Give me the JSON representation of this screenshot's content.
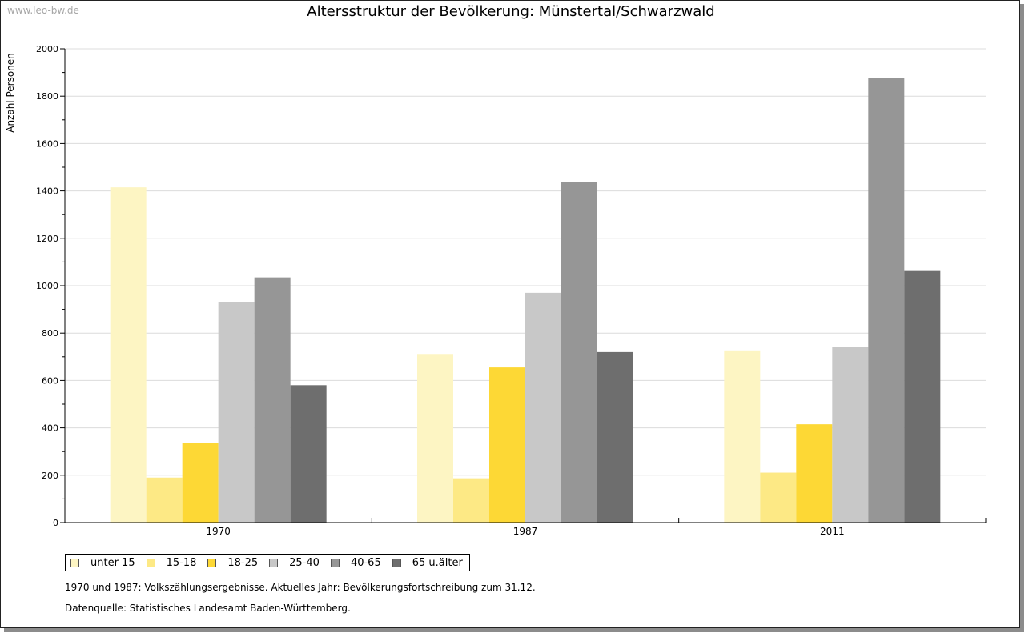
{
  "watermark": "www.leo-bw.de",
  "notes": {
    "line1": "1970 und 1987: Volkszählungsergebnisse. Aktuelles Jahr: Bevölkerungsfortschreibung zum 31.12.",
    "line2": "Datenquelle: Statistisches Landesamt Baden-Württemberg."
  },
  "chart_data": {
    "type": "bar",
    "title": "Altersstruktur der Bevölkerung: Münstertal/Schwarzwald",
    "xlabel": "",
    "ylabel": "Anzahl Personen",
    "ylim": [
      0,
      2000
    ],
    "yticks": [
      "0",
      "200",
      "400",
      "600",
      "800",
      "1000",
      "1200",
      "1400",
      "1600",
      "1800",
      "2000"
    ],
    "grid": true,
    "legend_position": "bottom-left",
    "categories": [
      "1970",
      "1987",
      "2011"
    ],
    "series": [
      {
        "name": "unter 15",
        "color": "#fdf5c3",
        "values": [
          1415,
          712,
          727
        ]
      },
      {
        "name": "15-18",
        "color": "#fde985",
        "values": [
          190,
          187,
          211
        ]
      },
      {
        "name": "18-25",
        "color": "#fdd835",
        "values": [
          335,
          655,
          415
        ]
      },
      {
        "name": "25-40",
        "color": "#c8c8c8",
        "values": [
          930,
          970,
          740
        ]
      },
      {
        "name": "40-65",
        "color": "#969696",
        "values": [
          1035,
          1437,
          1878
        ]
      },
      {
        "name": "65 u.älter",
        "color": "#6e6e6e",
        "values": [
          580,
          720,
          1062
        ]
      }
    ]
  }
}
